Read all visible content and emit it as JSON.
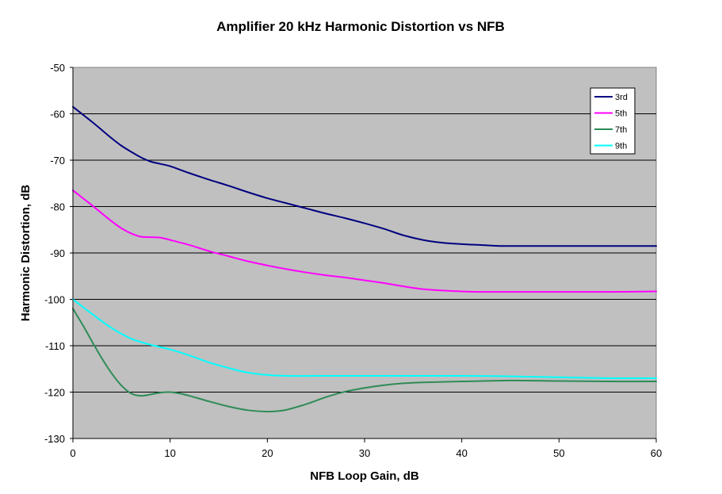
{
  "chart_data": {
    "type": "line",
    "title": "Amplifier 20 kHz Harmonic Distortion vs NFB",
    "xlabel": "NFB Loop Gain, dB",
    "ylabel": "Harmonic Distortion, dB",
    "xlim": [
      0,
      60
    ],
    "ylim": [
      -130,
      -50
    ],
    "xticks": [
      0,
      10,
      20,
      30,
      40,
      50,
      60
    ],
    "yticks": [
      -50,
      -60,
      -70,
      -80,
      -90,
      -100,
      -110,
      -120,
      -130
    ],
    "grid": "horizontal",
    "legend_position": "top-right",
    "colors": {
      "plot_background": "#c0c0c0",
      "grid": "#000000"
    },
    "series": [
      {
        "name": "3rd",
        "color": "#000080",
        "x": [
          0,
          2,
          4,
          5,
          6,
          7,
          8,
          9,
          10,
          12,
          14,
          16,
          18,
          20,
          22,
          24,
          26,
          28,
          30,
          32,
          34,
          36,
          38,
          40,
          42,
          44,
          46,
          50,
          55,
          60
        ],
        "y": [
          -58.5,
          -61.8,
          -65.3,
          -66.9,
          -68.2,
          -69.4,
          -70.3,
          -70.8,
          -71.3,
          -72.8,
          -74.2,
          -75.5,
          -76.9,
          -78.2,
          -79.3,
          -80.4,
          -81.5,
          -82.5,
          -83.6,
          -84.8,
          -86.2,
          -87.2,
          -87.8,
          -88.1,
          -88.3,
          -88.5,
          -88.5,
          -88.5,
          -88.5,
          -88.5
        ]
      },
      {
        "name": "5th",
        "color": "#ff00ff",
        "x": [
          0,
          2,
          4,
          5,
          6,
          7,
          8,
          9,
          10,
          12,
          14,
          16,
          18,
          20,
          22,
          24,
          26,
          28,
          30,
          32,
          34,
          36,
          38,
          40,
          42,
          46,
          50,
          55,
          60
        ],
        "y": [
          -76.5,
          -79.8,
          -83.2,
          -84.7,
          -85.8,
          -86.5,
          -86.6,
          -86.7,
          -87.2,
          -88.3,
          -89.6,
          -90.7,
          -91.8,
          -92.7,
          -93.5,
          -94.2,
          -94.8,
          -95.3,
          -95.9,
          -96.5,
          -97.2,
          -97.8,
          -98.1,
          -98.3,
          -98.4,
          -98.4,
          -98.4,
          -98.4,
          -98.3
        ]
      },
      {
        "name": "7th",
        "color": "#2e8b57",
        "x": [
          0,
          1,
          2,
          3,
          4,
          5,
          6,
          7,
          8,
          9,
          10,
          11,
          12,
          14,
          16,
          18,
          20,
          21,
          22,
          24,
          26,
          28,
          30,
          32,
          34,
          36,
          40,
          45,
          50,
          55,
          60
        ],
        "y": [
          -102,
          -105.5,
          -109.2,
          -112.8,
          -116,
          -118.6,
          -120.3,
          -120.8,
          -120.5,
          -120.1,
          -120,
          -120.3,
          -120.8,
          -122,
          -123.1,
          -123.9,
          -124.2,
          -124.1,
          -123.8,
          -122.6,
          -121.1,
          -119.9,
          -119.1,
          -118.5,
          -118.1,
          -117.9,
          -117.7,
          -117.5,
          -117.6,
          -117.7,
          -117.7
        ]
      },
      {
        "name": "9th",
        "color": "#00ffff",
        "x": [
          0,
          2,
          4,
          6,
          8,
          10,
          12,
          14,
          16,
          18,
          20,
          22,
          25,
          30,
          35,
          40,
          45,
          50,
          55,
          60
        ],
        "y": [
          -100,
          -103.2,
          -106.2,
          -108.5,
          -109.8,
          -110.8,
          -112.1,
          -113.6,
          -114.8,
          -115.8,
          -116.3,
          -116.5,
          -116.5,
          -116.5,
          -116.5,
          -116.5,
          -116.6,
          -116.8,
          -117,
          -117
        ]
      }
    ]
  }
}
